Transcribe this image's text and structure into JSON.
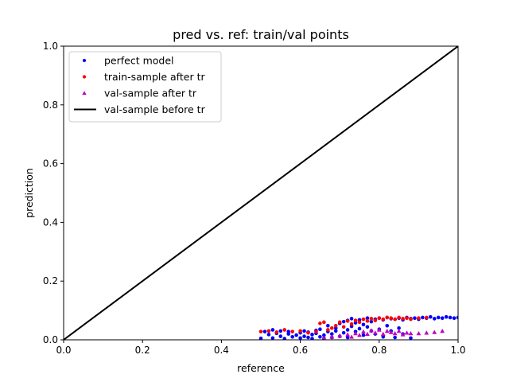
{
  "chart_data": {
    "type": "scatter",
    "title": "pred vs. ref: train/val points",
    "xlabel": "reference",
    "ylabel": "prediction",
    "xlim": [
      0.0,
      1.0
    ],
    "ylim": [
      0.0,
      1.0
    ],
    "x_ticks": [
      "0.0",
      "0.2",
      "0.4",
      "0.6",
      "0.8",
      "1.0"
    ],
    "y_ticks": [
      "0.0",
      "0.2",
      "0.4",
      "0.6",
      "0.8",
      "1.0"
    ],
    "grid": false,
    "legend_position": "top-left",
    "series": [
      {
        "name": "perfect model",
        "kind": "points",
        "marker": "circle",
        "color": "#0000ff",
        "points": [
          [
            0.5,
            0.005
          ],
          [
            0.51,
            0.028
          ],
          [
            0.52,
            0.018
          ],
          [
            0.53,
            0.034
          ],
          [
            0.53,
            0.006
          ],
          [
            0.54,
            0.022
          ],
          [
            0.55,
            0.012
          ],
          [
            0.55,
            0.03
          ],
          [
            0.56,
            0.004
          ],
          [
            0.57,
            0.02
          ],
          [
            0.57,
            0.028
          ],
          [
            0.58,
            0.01
          ],
          [
            0.59,
            0.016
          ],
          [
            0.6,
            0.006
          ],
          [
            0.6,
            0.024
          ],
          [
            0.61,
            0.03
          ],
          [
            0.61,
            0.012
          ],
          [
            0.62,
            0.008
          ],
          [
            0.62,
            0.026
          ],
          [
            0.63,
            0.018
          ],
          [
            0.63,
            0.004
          ],
          [
            0.64,
            0.022
          ],
          [
            0.64,
            0.032
          ],
          [
            0.65,
            0.01
          ],
          [
            0.65,
            0.036
          ],
          [
            0.66,
            0.016
          ],
          [
            0.66,
            0.005
          ],
          [
            0.67,
            0.028
          ],
          [
            0.67,
            0.048
          ],
          [
            0.68,
            0.02
          ],
          [
            0.68,
            0.008
          ],
          [
            0.69,
            0.04
          ],
          [
            0.69,
            0.03
          ],
          [
            0.7,
            0.012
          ],
          [
            0.7,
            0.056
          ],
          [
            0.71,
            0.024
          ],
          [
            0.71,
            0.062
          ],
          [
            0.72,
            0.034
          ],
          [
            0.72,
            0.066
          ],
          [
            0.72,
            0.008
          ],
          [
            0.73,
            0.046
          ],
          [
            0.73,
            0.072
          ],
          [
            0.74,
            0.028
          ],
          [
            0.74,
            0.058
          ],
          [
            0.75,
            0.038
          ],
          [
            0.75,
            0.068
          ],
          [
            0.76,
            0.016
          ],
          [
            0.76,
            0.052
          ],
          [
            0.77,
            0.074
          ],
          [
            0.77,
            0.044
          ],
          [
            0.78,
            0.03
          ],
          [
            0.78,
            0.062
          ],
          [
            0.79,
            0.07
          ],
          [
            0.79,
            0.02
          ],
          [
            0.8,
            0.074
          ],
          [
            0.8,
            0.036
          ],
          [
            0.81,
            0.068
          ],
          [
            0.81,
            0.01
          ],
          [
            0.82,
            0.076
          ],
          [
            0.82,
            0.048
          ],
          [
            0.83,
            0.072
          ],
          [
            0.83,
            0.03
          ],
          [
            0.84,
            0.07
          ],
          [
            0.84,
            0.008
          ],
          [
            0.85,
            0.074
          ],
          [
            0.85,
            0.04
          ],
          [
            0.86,
            0.068
          ],
          [
            0.86,
            0.02
          ],
          [
            0.87,
            0.076
          ],
          [
            0.88,
            0.072
          ],
          [
            0.88,
            0.006
          ],
          [
            0.89,
            0.074
          ],
          [
            0.9,
            0.07
          ],
          [
            0.91,
            0.076
          ],
          [
            0.92,
            0.074
          ],
          [
            0.93,
            0.078
          ],
          [
            0.94,
            0.072
          ],
          [
            0.95,
            0.076
          ],
          [
            0.96,
            0.074
          ],
          [
            0.97,
            0.078
          ],
          [
            0.98,
            0.076
          ],
          [
            0.99,
            0.074
          ],
          [
            1.0,
            0.076
          ]
        ]
      },
      {
        "name": "train-sample after tr",
        "kind": "points",
        "marker": "circle",
        "color": "#ff0000",
        "points": [
          [
            0.5,
            0.028
          ],
          [
            0.52,
            0.03
          ],
          [
            0.54,
            0.026
          ],
          [
            0.56,
            0.034
          ],
          [
            0.58,
            0.028
          ],
          [
            0.6,
            0.03
          ],
          [
            0.62,
            0.024
          ],
          [
            0.64,
            0.028
          ],
          [
            0.65,
            0.056
          ],
          [
            0.66,
            0.06
          ],
          [
            0.67,
            0.034
          ],
          [
            0.68,
            0.04
          ],
          [
            0.69,
            0.048
          ],
          [
            0.7,
            0.06
          ],
          [
            0.71,
            0.044
          ],
          [
            0.72,
            0.064
          ],
          [
            0.73,
            0.054
          ],
          [
            0.74,
            0.066
          ],
          [
            0.75,
            0.06
          ],
          [
            0.76,
            0.07
          ],
          [
            0.77,
            0.064
          ],
          [
            0.78,
            0.072
          ],
          [
            0.79,
            0.066
          ],
          [
            0.8,
            0.074
          ],
          [
            0.81,
            0.07
          ],
          [
            0.82,
            0.076
          ],
          [
            0.83,
            0.074
          ],
          [
            0.84,
            0.07
          ],
          [
            0.85,
            0.076
          ],
          [
            0.86,
            0.072
          ],
          [
            0.87,
            0.074
          ],
          [
            0.88,
            0.07
          ],
          [
            0.9,
            0.074
          ],
          [
            0.92,
            0.076
          ]
        ]
      },
      {
        "name": "val-sample after tr",
        "kind": "points",
        "marker": "triangle",
        "color": "#bf00bf",
        "points": [
          [
            0.66,
            0.006
          ],
          [
            0.68,
            0.01
          ],
          [
            0.7,
            0.014
          ],
          [
            0.72,
            0.018
          ],
          [
            0.73,
            0.01
          ],
          [
            0.74,
            0.022
          ],
          [
            0.75,
            0.016
          ],
          [
            0.76,
            0.028
          ],
          [
            0.77,
            0.02
          ],
          [
            0.78,
            0.032
          ],
          [
            0.79,
            0.024
          ],
          [
            0.8,
            0.034
          ],
          [
            0.81,
            0.02
          ],
          [
            0.82,
            0.03
          ],
          [
            0.83,
            0.026
          ],
          [
            0.84,
            0.022
          ],
          [
            0.85,
            0.03
          ],
          [
            0.86,
            0.018
          ],
          [
            0.87,
            0.024
          ],
          [
            0.88,
            0.022
          ],
          [
            0.9,
            0.022
          ],
          [
            0.92,
            0.024
          ],
          [
            0.94,
            0.026
          ],
          [
            0.96,
            0.03
          ]
        ]
      },
      {
        "name": "val-sample before tr",
        "kind": "line",
        "color": "#000000",
        "points": [
          [
            0.0,
            0.0
          ],
          [
            1.0,
            1.0
          ]
        ]
      }
    ]
  }
}
